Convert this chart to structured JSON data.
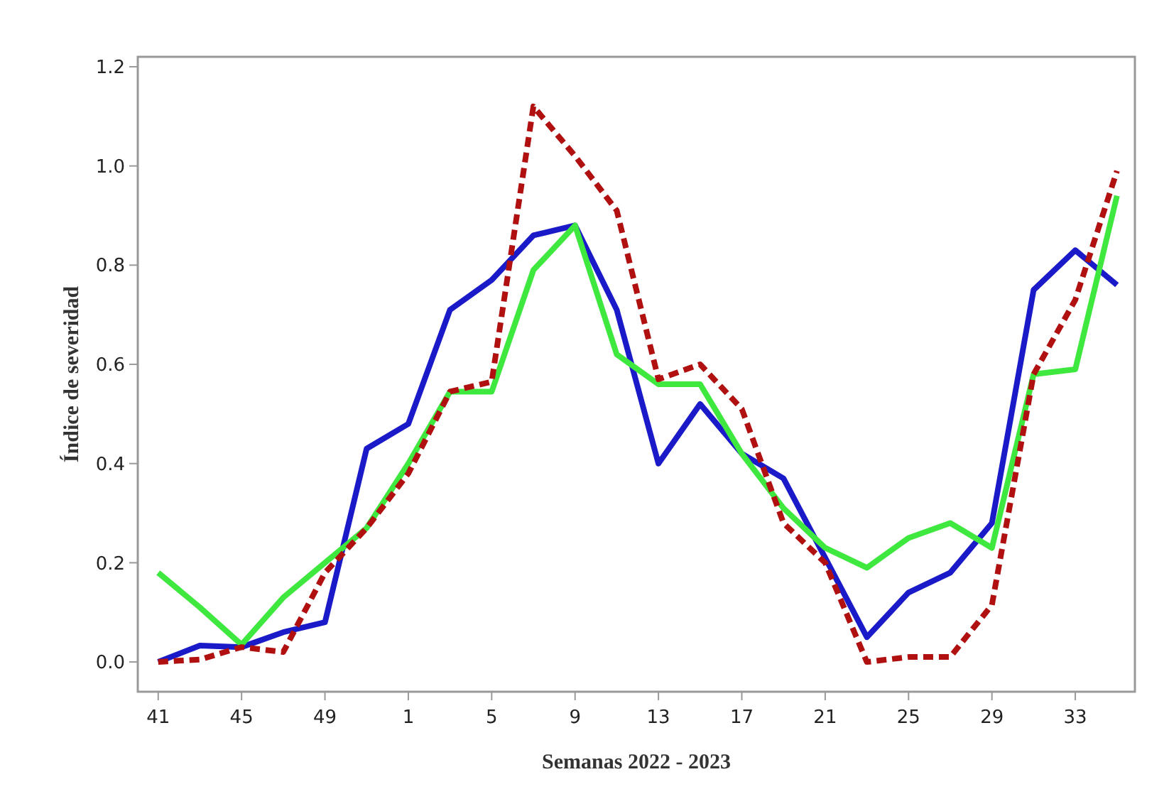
{
  "chart_data": {
    "type": "line",
    "xlabel": "Semanas 2022 - 2023",
    "ylabel": "Índice de severidad",
    "categories": [
      "41",
      null,
      "45",
      null,
      "49",
      null,
      "1",
      null,
      "5",
      null,
      "9",
      null,
      "13",
      null,
      "17",
      null,
      "21",
      null,
      "25",
      null,
      "29",
      null,
      "33",
      null
    ],
    "ylim": [
      -0.06,
      1.22
    ],
    "yticks": [
      {
        "value": 0,
        "label": "0.0"
      },
      {
        "value": 0.2,
        "label": "0.2"
      },
      {
        "value": 0.4,
        "label": "0.4"
      },
      {
        "value": 0.6,
        "label": "0.6"
      },
      {
        "value": 0.8,
        "label": "0.8"
      },
      {
        "value": 1,
        "label": "1.0"
      },
      {
        "value": 1.2,
        "label": "1.2"
      }
    ],
    "grid": false,
    "marker": "none",
    "series": [
      {
        "color": "#1a1ac8",
        "line_style": "solid",
        "values": [
          0,
          0.033,
          0.03,
          0.06,
          0.08,
          0.43,
          0.48,
          0.71,
          0.77,
          0.86,
          0.88,
          0.71,
          0.4,
          0.52,
          0.42,
          0.37,
          0.21,
          0.05,
          0.14,
          0.18,
          0.28,
          0.75,
          0.83,
          0.76
        ]
      },
      {
        "color": "#3ee83e",
        "line_style": "solid",
        "values": [
          0.18,
          0.11,
          0.035,
          0.13,
          0.2,
          0.27,
          0.4,
          0.545,
          0.545,
          0.79,
          0.88,
          0.62,
          0.56,
          0.56,
          0.42,
          0.31,
          0.23,
          0.19,
          0.25,
          0.28,
          0.23,
          0.58,
          0.59,
          0.94
        ]
      },
      {
        "color": "#b01010",
        "line_style": "dashed",
        "values": [
          0,
          0.005,
          0.03,
          0.02,
          0.18,
          0.27,
          0.38,
          0.545,
          0.565,
          1.12,
          1.02,
          0.91,
          0.57,
          0.6,
          0.51,
          0.28,
          0.2,
          0,
          0.01,
          0.01,
          0.115,
          0.58,
          0.73,
          0.99
        ]
      }
    ]
  }
}
